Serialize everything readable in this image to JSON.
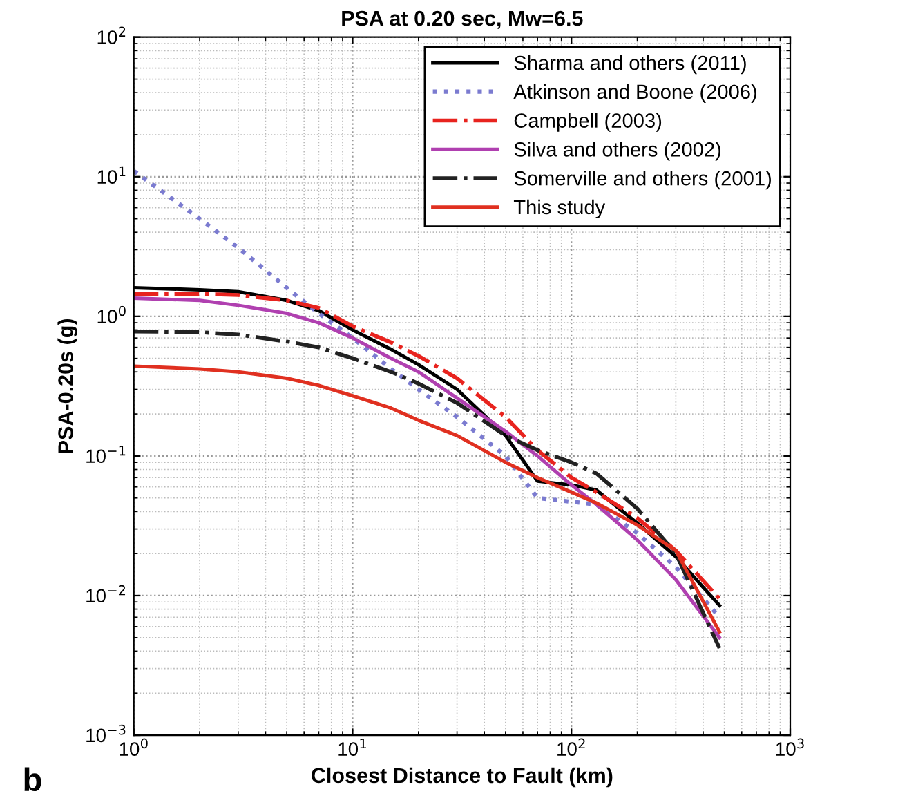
{
  "chart_data": {
    "type": "line",
    "title": "PSA at 0.20 sec, Mw=6.5",
    "xlabel": "Closest Distance to Fault (km)",
    "ylabel": "PSA-0.20s (g)",
    "annotations": [
      "b"
    ],
    "x": [
      1,
      2,
      3,
      5,
      7,
      10,
      15,
      20,
      30,
      50,
      70,
      100,
      130,
      200,
      300,
      475
    ],
    "series": [
      {
        "name": "Sharma and others (2011)",
        "color": "#000000",
        "line_style": "solid",
        "values": [
          1.6,
          1.55,
          1.5,
          1.3,
          1.1,
          0.8,
          0.58,
          0.45,
          0.3,
          0.14,
          0.066,
          0.062,
          0.057,
          0.033,
          0.019,
          0.0085
        ]
      },
      {
        "name": "Atkinson and Boone (2006)",
        "color": "#7b7bd0",
        "line_style": "dotted",
        "values": [
          11,
          5,
          3.1,
          1.6,
          1.05,
          0.7,
          0.42,
          0.3,
          0.19,
          0.1,
          0.05,
          0.047,
          0.045,
          0.028,
          0.016,
          0.007
        ]
      },
      {
        "name": "Campbell (2003)",
        "color": "#e8231e",
        "line_style": "dashdot",
        "values": [
          1.45,
          1.45,
          1.42,
          1.3,
          1.15,
          0.85,
          0.65,
          0.52,
          0.36,
          0.19,
          0.11,
          0.07,
          0.055,
          0.036,
          0.021,
          0.0095
        ]
      },
      {
        "name": "Silva and others (2002)",
        "color": "#b040b0",
        "line_style": "solid",
        "values": [
          1.35,
          1.3,
          1.2,
          1.05,
          0.9,
          0.7,
          0.5,
          0.4,
          0.26,
          0.15,
          0.1,
          0.062,
          0.045,
          0.025,
          0.013,
          0.005
        ]
      },
      {
        "name": "Somerville and others (2001)",
        "color": "#222222",
        "line_style": "dashdot",
        "values": [
          0.78,
          0.77,
          0.74,
          0.66,
          0.6,
          0.5,
          0.4,
          0.33,
          0.24,
          0.14,
          0.11,
          0.09,
          0.075,
          0.042,
          0.02,
          0.0042
        ]
      },
      {
        "name": "This study",
        "color": "#e03020",
        "line_style": "solid",
        "values": [
          0.44,
          0.42,
          0.4,
          0.36,
          0.32,
          0.27,
          0.22,
          0.18,
          0.14,
          0.09,
          0.07,
          0.055,
          0.046,
          0.032,
          0.021,
          0.0055
        ]
      }
    ],
    "log": "xy",
    "xlim": [
      1,
      1000
    ],
    "ylim": [
      0.001,
      100
    ],
    "xticks": [
      {
        "value": 1,
        "label": "10$^{0}$"
      },
      {
        "value": 10,
        "label": "10$^{1}$"
      },
      {
        "value": 100,
        "label": "10$^{2}$"
      },
      {
        "value": 1000,
        "label": "10$^{3}$"
      }
    ],
    "yticks": [
      {
        "value": 0.001,
        "label": "10$^{−3}$"
      },
      {
        "value": 0.01,
        "label": "10$^{−2}$"
      },
      {
        "value": 0.1,
        "label": "10$^{−1}$"
      },
      {
        "value": 1,
        "label": "10$^{0}$"
      },
      {
        "value": 10,
        "label": "10$^{1}$"
      },
      {
        "value": 100,
        "label": "10$^{2}$"
      }
    ],
    "grid": true,
    "legend": "top right"
  }
}
